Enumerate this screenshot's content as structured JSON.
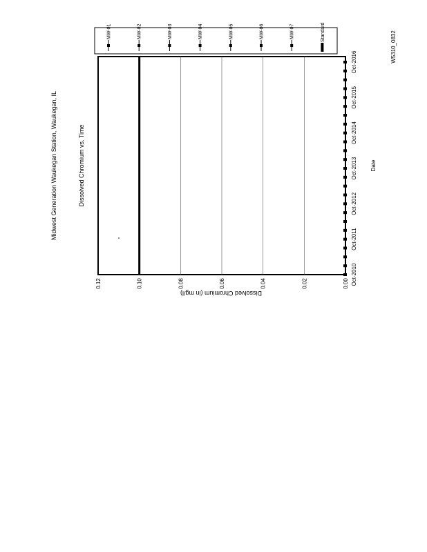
{
  "page": {
    "code": "W5310_0832"
  },
  "chart_data": {
    "type": "line",
    "title": "Midwest Generation Waukegan Station, Waukegan, IL",
    "subtitle": "Dissolved Chromium vs. Time",
    "xlabel": "Date",
    "ylabel": "Dissolved Chromium (in mg/l)",
    "ylim": [
      0,
      0.12
    ],
    "yticks": [
      "0.00",
      "0.02",
      "0.04",
      "0.06",
      "0.08",
      "0.10",
      "0.12"
    ],
    "xticks": [
      "Oct-2010",
      "Oct-2011",
      "Oct-2012",
      "Oct-2013",
      "Oct-2014",
      "Oct-2015",
      "Oct-2016"
    ],
    "orientation": "rotated 90 degrees",
    "legend_position": "top",
    "series": [
      {
        "name": "MW-01",
        "marker": "square"
      },
      {
        "name": "MW-02",
        "marker": "square"
      },
      {
        "name": "MW-03",
        "marker": "square"
      },
      {
        "name": "MW-04",
        "marker": "square"
      },
      {
        "name": "MW-05",
        "marker": "square"
      },
      {
        "name": "MW-06",
        "marker": "square"
      },
      {
        "name": "MW-07",
        "marker": "square"
      },
      {
        "name": "Standard",
        "constant": 0.1,
        "style": "thick line"
      }
    ],
    "colors": {
      "all": "#000000"
    }
  }
}
